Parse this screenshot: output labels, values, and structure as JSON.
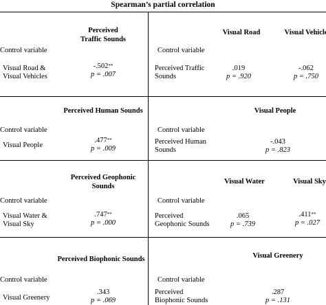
{
  "title": "Spearman’s partial correlation",
  "control_label": "Control variable",
  "sections": [
    {
      "left": {
        "header": [
          "Perceived",
          "Traffic Sounds"
        ],
        "row_label": [
          "Visual Road &",
          "Visual Vehicles"
        ],
        "value": [
          "-.502**",
          "p = .007"
        ]
      },
      "right": {
        "headers": [
          "Visual Road",
          "Visual Vehicle"
        ],
        "row_label": [
          "Perceived Traffic",
          "Sounds"
        ],
        "values": [
          [
            ".019",
            "p = .920"
          ],
          [
            "-.062",
            "p = .750"
          ]
        ]
      }
    },
    {
      "left": {
        "header": [
          "Perceived Human Sounds"
        ],
        "row_label": [
          "Visual People"
        ],
        "value": [
          ".477**",
          "p = .009"
        ]
      },
      "right": {
        "headers": [
          "Visual People"
        ],
        "row_label": [
          "Perceived Human",
          "Sounds"
        ],
        "values": [
          [
            "-.043",
            "p = .823"
          ]
        ]
      }
    },
    {
      "left": {
        "header": [
          "Perceived Geophonic",
          "Sounds"
        ],
        "row_label": [
          "Visual Water &",
          "Visual Sky"
        ],
        "value": [
          ".747**",
          "p = .000"
        ]
      },
      "right": {
        "headers": [
          "Visual Water",
          "Visual Sky"
        ],
        "row_label": [
          "Perceived",
          "Geophonic Sounds"
        ],
        "values": [
          [
            ".065",
            "p = .739"
          ],
          [
            ".411**",
            "p = .027"
          ]
        ]
      }
    },
    {
      "left": {
        "header": [
          "Perceived Biophonic Sounds"
        ],
        "row_label": [
          "Visual Greenery"
        ],
        "value": [
          ".343",
          "p = .069"
        ]
      },
      "right": {
        "headers": [
          "Visual Greenery"
        ],
        "row_label": [
          "Perceived",
          "Biophonic Sounds"
        ],
        "values": [
          [
            ".287",
            "p = .131"
          ]
        ]
      }
    }
  ]
}
